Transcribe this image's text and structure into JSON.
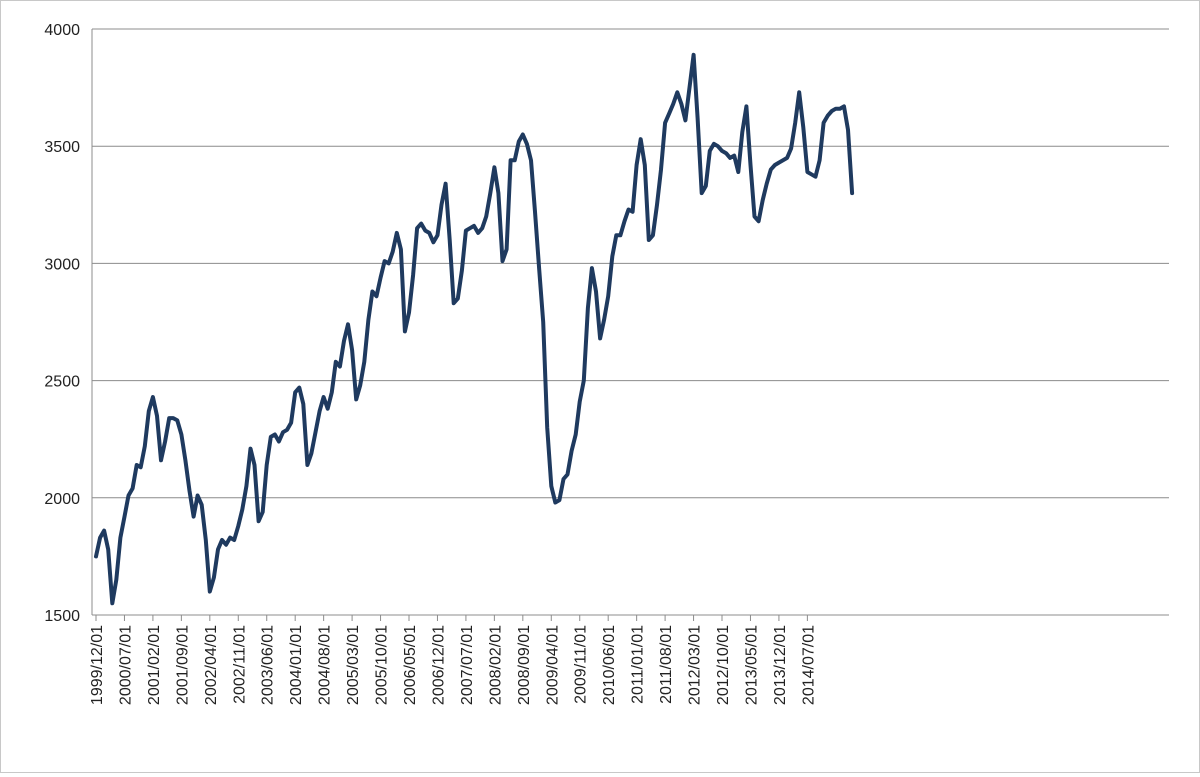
{
  "chart_data": {
    "type": "line",
    "title": "",
    "xlabel": "",
    "ylabel": "",
    "ylim": [
      1500,
      4000
    ],
    "yticks": [
      1500,
      2000,
      2500,
      3000,
      3500,
      4000
    ],
    "grid": true,
    "legend": "none",
    "xtick_labels": [
      "1999/12/01",
      "2000/07/01",
      "2001/02/01",
      "2001/09/01",
      "2002/04/01",
      "2002/11/01",
      "2003/06/01",
      "2004/01/01",
      "2004/08/01",
      "2005/03/01",
      "2005/10/01",
      "2006/05/01",
      "2006/12/01",
      "2007/07/01",
      "2008/02/01",
      "2008/09/01",
      "2009/04/01",
      "2009/11/01",
      "2010/06/01",
      "2011/01/01",
      "2011/08/01",
      "2012/03/01",
      "2012/10/01",
      "2013/05/01",
      "2013/12/01",
      "2014/07/01"
    ],
    "start_month": "1999/12",
    "series": [
      {
        "color": "#1f3a5f",
        "values": [
          1750,
          1830,
          1860,
          1780,
          1550,
          1650,
          1830,
          1920,
          2010,
          2040,
          2140,
          2130,
          2220,
          2370,
          2430,
          2350,
          2160,
          2240,
          2340,
          2340,
          2330,
          2270,
          2160,
          2030,
          1920,
          2010,
          1970,
          1820,
          1600,
          1660,
          1780,
          1820,
          1800,
          1830,
          1820,
          1880,
          1950,
          2050,
          2210,
          2140,
          1900,
          1940,
          2140,
          2260,
          2270,
          2240,
          2280,
          2290,
          2320,
          2450,
          2470,
          2400,
          2140,
          2190,
          2280,
          2370,
          2430,
          2380,
          2450,
          2580,
          2560,
          2670,
          2740,
          2630,
          2420,
          2480,
          2580,
          2760,
          2880,
          2860,
          2940,
          3010,
          3000,
          3050,
          3130,
          3060,
          2710,
          2790,
          2950,
          3150,
          3170,
          3140,
          3130,
          3090,
          3120,
          3250,
          3340,
          3100,
          2830,
          2850,
          2970,
          3140,
          3150,
          3160,
          3130,
          3150,
          3200,
          3300,
          3410,
          3300,
          3010,
          3060,
          3440,
          3440,
          3520,
          3550,
          3510,
          3440,
          3220,
          2980,
          2750,
          2300,
          2050,
          1980,
          1990,
          2080,
          2100,
          2200,
          2270,
          2410,
          2500,
          2810,
          2980,
          2880,
          2680,
          2760,
          2860,
          3030,
          3120,
          3120,
          3180,
          3230,
          3220,
          3420,
          3530,
          3420,
          3100,
          3120,
          3250,
          3400,
          3600,
          3640,
          3680,
          3730,
          3680,
          3610,
          3750,
          3890,
          3620,
          3300,
          3330,
          3480,
          3510,
          3500,
          3480,
          3470,
          3450,
          3460,
          3390,
          3560,
          3670,
          3420,
          3200,
          3180,
          3270,
          3340,
          3400,
          3420,
          3430,
          3440,
          3450,
          3490,
          3600,
          3730,
          3580,
          3390,
          3380,
          3370,
          3440,
          3600,
          3630,
          3650,
          3660,
          3660,
          3670,
          3570,
          3300
        ]
      }
    ]
  }
}
